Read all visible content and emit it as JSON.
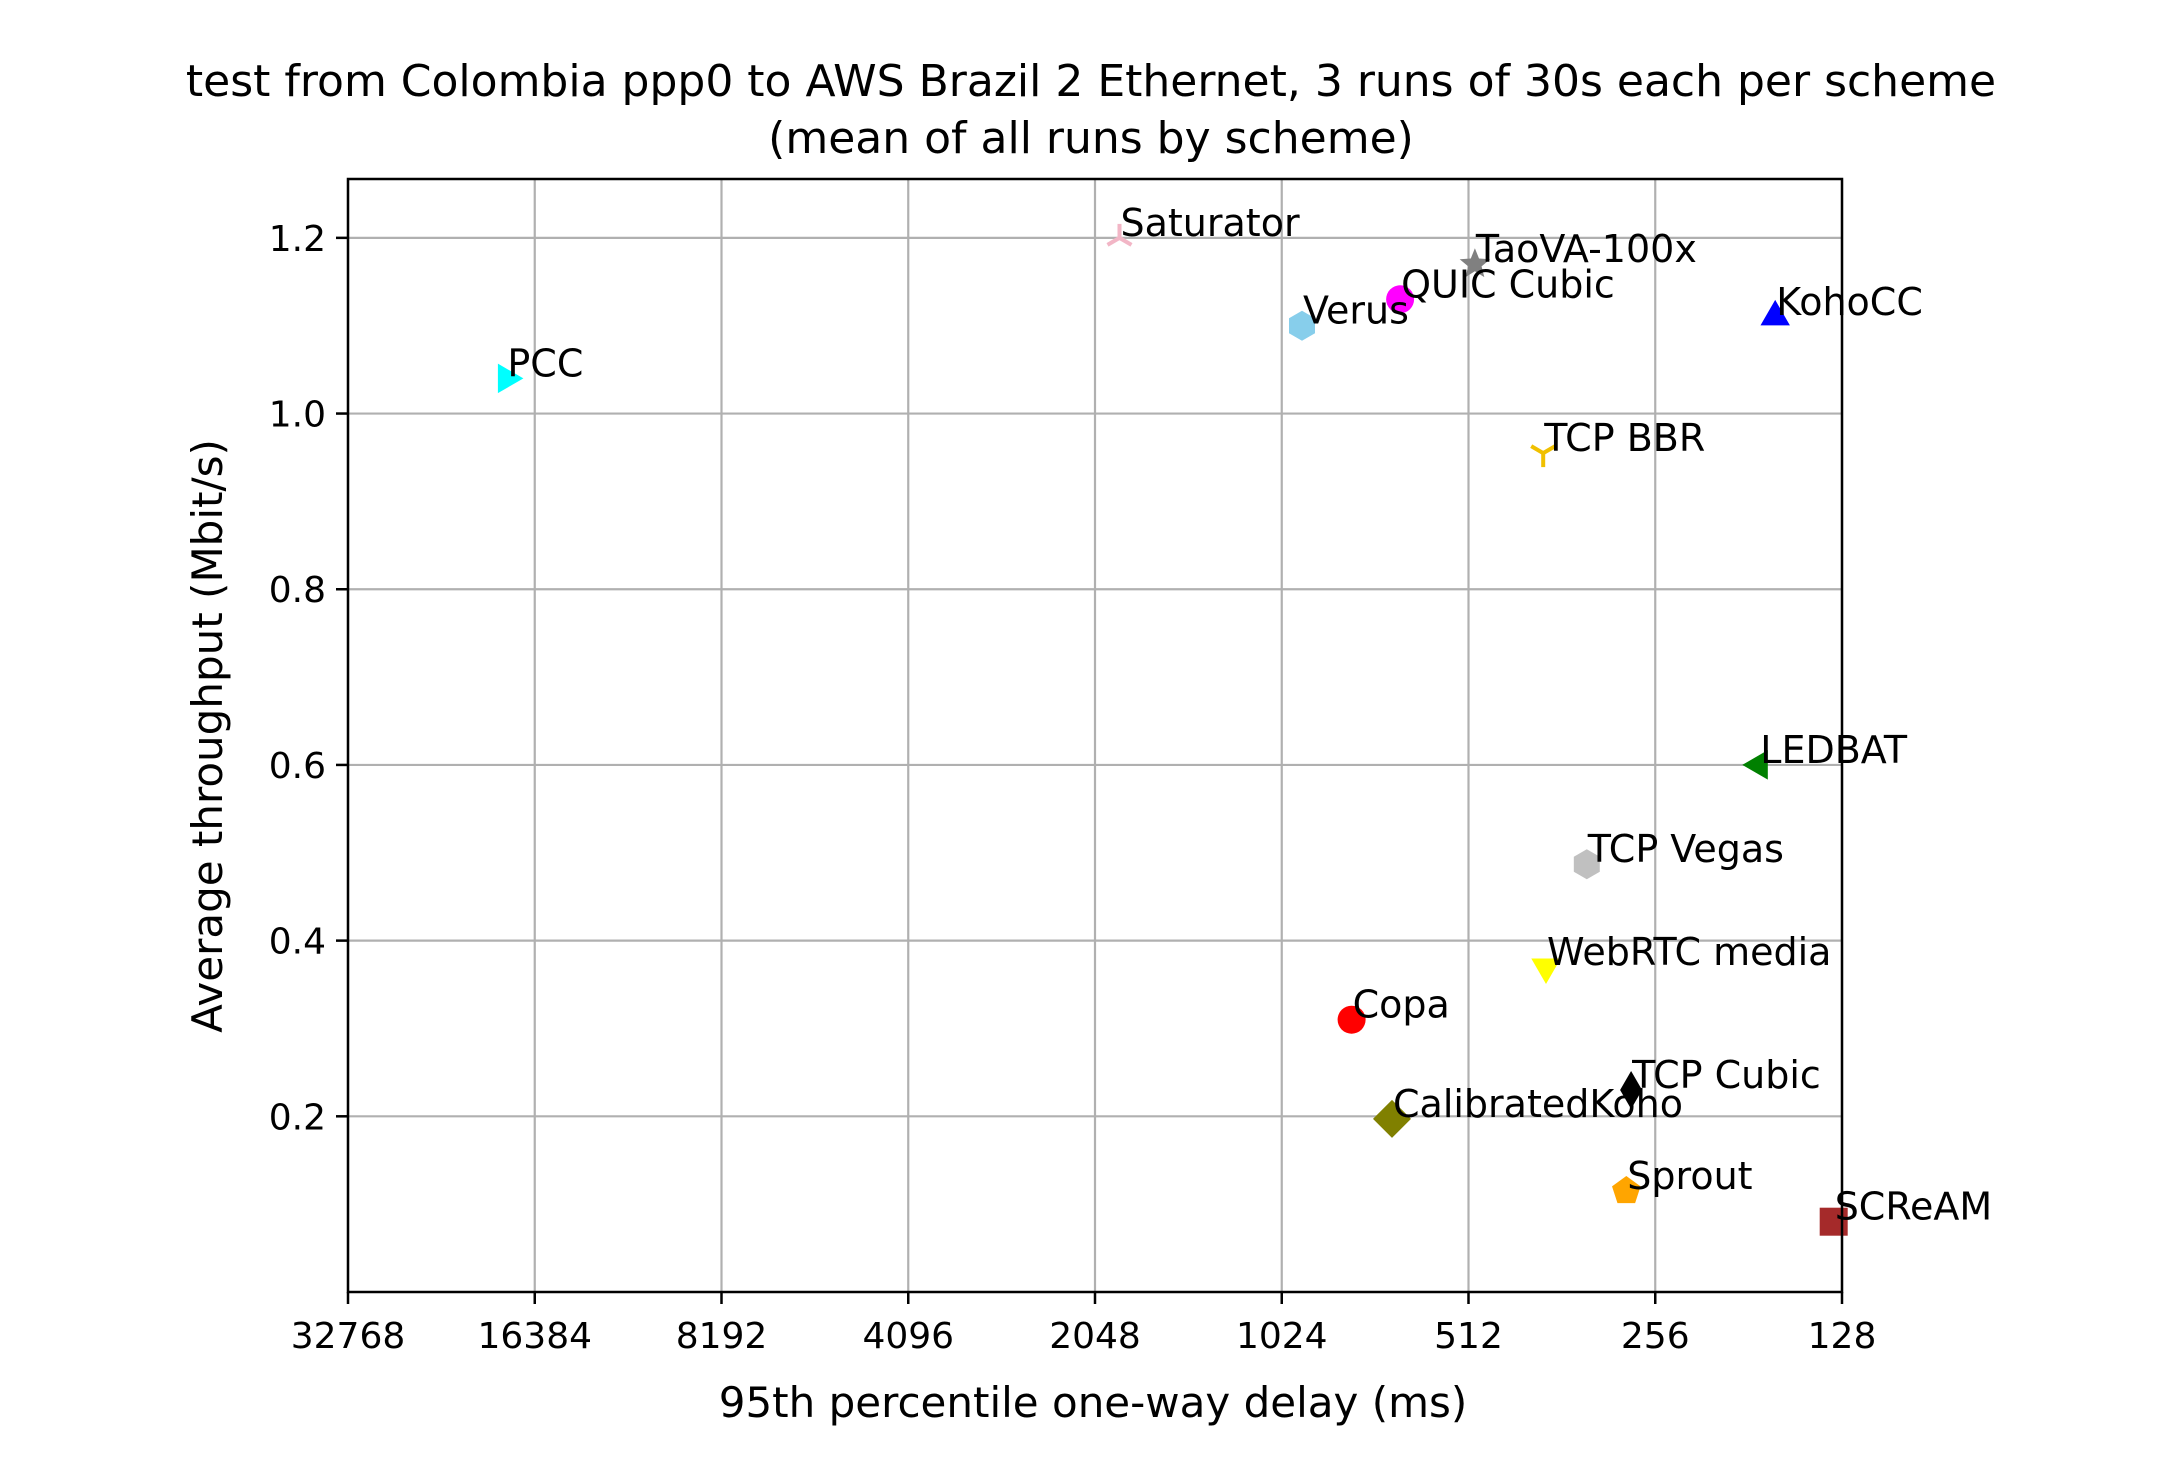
{
  "chart_data": {
    "type": "scatter",
    "title": "test from Colombia ppp0 to AWS Brazil 2 Ethernet, 3 runs of 30s each per scheme",
    "subtitle": "(mean of all runs by scheme)",
    "xlabel": "95th percentile one-way delay (ms)",
    "ylabel": "Average throughput (Mbit/s)",
    "x_scale": "log2",
    "x_inverted": true,
    "xlim": [
      32768,
      128
    ],
    "ylim": [
      0.0,
      1.267
    ],
    "x_ticks": [
      32768,
      16384,
      8192,
      4096,
      2048,
      1024,
      512,
      256,
      128
    ],
    "x_tick_labels": [
      "32768",
      "16384",
      "8192",
      "4096",
      "2048",
      "1024",
      "512",
      "256",
      "128"
    ],
    "y_ticks": [
      0.2,
      0.4,
      0.6,
      0.8,
      1.0,
      1.2
    ],
    "y_tick_labels": [
      "0.2",
      "0.4",
      "0.6",
      "0.8",
      "1.0",
      "1.2"
    ],
    "grid": true,
    "points": [
      {
        "label": "Saturator",
        "x": 1870,
        "y": 1.2,
        "color": "#f2b6c6",
        "marker": "tri_up"
      },
      {
        "label": "TaoVA-100x",
        "x": 500,
        "y": 1.17,
        "color": "#808080",
        "marker": "star"
      },
      {
        "label": "QUIC Cubic",
        "x": 660,
        "y": 1.13,
        "color": "#ff00ff",
        "marker": "circle"
      },
      {
        "label": "Verus",
        "x": 950,
        "y": 1.1,
        "color": "#87ceeb",
        "marker": "hexagon"
      },
      {
        "label": "KohoCC",
        "x": 164,
        "y": 1.11,
        "color": "#0000ff",
        "marker": "triangle_up"
      },
      {
        "label": "PCC",
        "x": 18200,
        "y": 1.04,
        "color": "#00ffff",
        "marker": "triangle_right"
      },
      {
        "label": "TCP BBR",
        "x": 388,
        "y": 0.955,
        "color": "#f0c000",
        "marker": "tri_down"
      },
      {
        "label": "LEDBAT",
        "x": 174,
        "y": 0.6,
        "color": "#008000",
        "marker": "triangle_left"
      },
      {
        "label": "TCP Vegas",
        "x": 330,
        "y": 0.487,
        "color": "#c0c0c0",
        "marker": "hexagon"
      },
      {
        "label": "WebRTC media",
        "x": 384,
        "y": 0.37,
        "color": "#ffff00",
        "marker": "triangle_down"
      },
      {
        "label": "Copa",
        "x": 790,
        "y": 0.31,
        "color": "#ff0000",
        "marker": "circle"
      },
      {
        "label": "TCP Cubic",
        "x": 280,
        "y": 0.23,
        "color": "#000000",
        "marker": "thin_diamond"
      },
      {
        "label": "CalibratedKoho",
        "x": 680,
        "y": 0.197,
        "color": "#808000",
        "marker": "diamond"
      },
      {
        "label": "Sprout",
        "x": 285,
        "y": 0.115,
        "color": "#ffa500",
        "marker": "pentagon"
      },
      {
        "label": "SCReAM",
        "x": 132,
        "y": 0.08,
        "color": "#a52a2a",
        "marker": "square"
      }
    ]
  }
}
